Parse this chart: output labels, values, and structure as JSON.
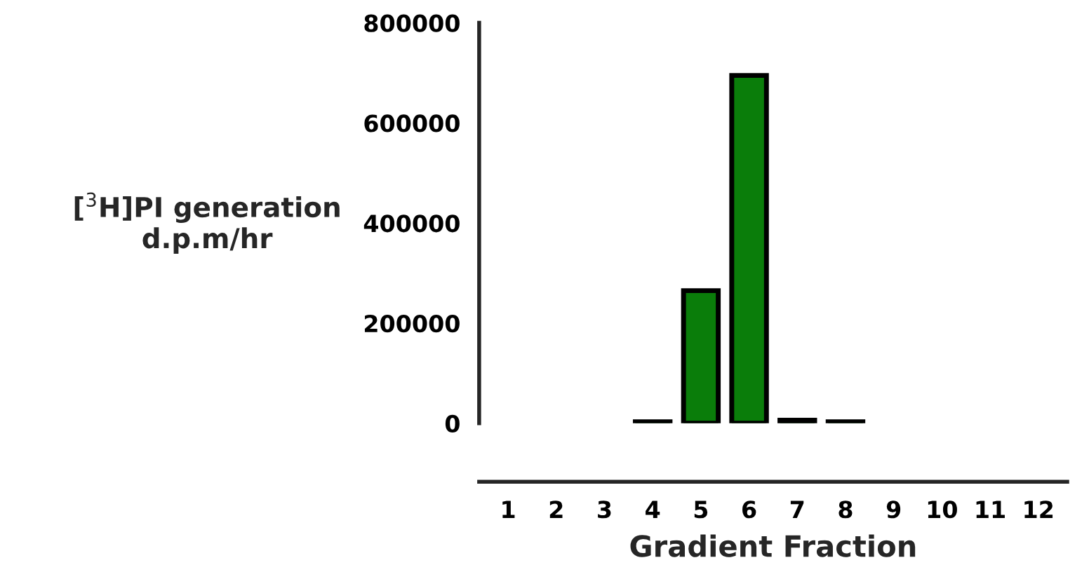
{
  "chart_data": {
    "type": "bar",
    "xlabel": "Gradient Fraction",
    "ylabel": "[$^{3}$H]PI generation\nd.p.m/hr",
    "categories": [
      "1",
      "2",
      "3",
      "4",
      "5",
      "6",
      "7",
      "8",
      "9",
      "10",
      "11",
      "12"
    ],
    "series": [
      {
        "color": "#0a7d0a",
        "values": [
          null,
          null,
          null,
          3000,
          265000,
          695000,
          6000,
          3000,
          null,
          null,
          null,
          null
        ]
      }
    ],
    "ylim": [
      0,
      800000
    ],
    "yticks": [
      0,
      200000,
      400000,
      600000,
      800000
    ],
    "grid": false,
    "legend": false
  }
}
